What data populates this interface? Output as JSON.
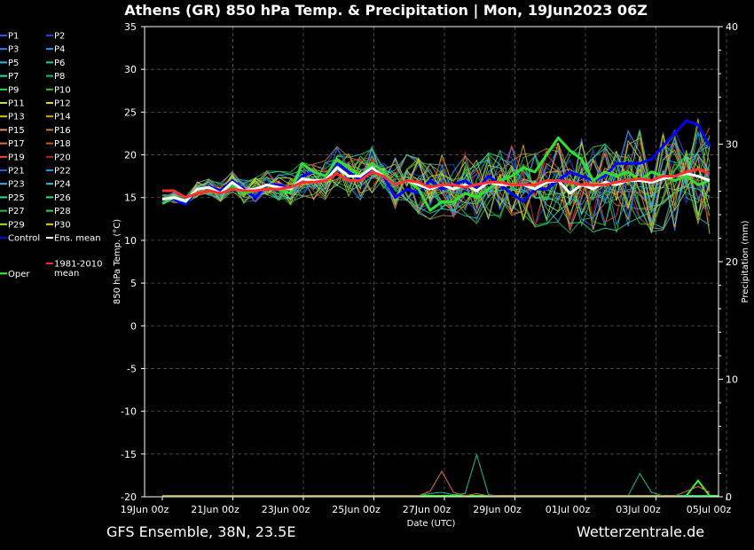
{
  "title": "Athens  (GR)  850 hPa Temp. & Precipitation | Mon, 19Jun2023 06Z",
  "footer_left": "GFS Ensemble, 38N, 23.5E",
  "footer_right": "Wetterzentrale.de",
  "chart_data": {
    "type": "line",
    "xlabel": "Date (UTC)",
    "ylabel": "850 hPa Temp. (°C)",
    "ylabel_right": "Precipitation (mm)",
    "ylim": [
      -20,
      35
    ],
    "ylim_right": [
      0,
      40
    ],
    "yticks": [
      "35",
      "30",
      "25",
      "20",
      "15",
      "10",
      "5",
      "0",
      "-5",
      "-10",
      "-15",
      "-20"
    ],
    "yticks_right": [
      "40",
      "30",
      "20",
      "10",
      "0"
    ],
    "xticks": [
      "19Jun 00z",
      "21Jun 00z",
      "23Jun 00z",
      "25Jun 00z",
      "27Jun 00z",
      "29Jun 00z",
      "01Jul 00z",
      "03Jul 00z",
      "05Jul 00z"
    ],
    "grid": true,
    "legend": [
      {
        "name": "P1",
        "color": "#3050ff"
      },
      {
        "name": "P2",
        "color": "#2040e0"
      },
      {
        "name": "P3",
        "color": "#3080ff"
      },
      {
        "name": "P4",
        "color": "#20a0ff"
      },
      {
        "name": "P5",
        "color": "#20c0e0"
      },
      {
        "name": "P6",
        "color": "#20d0a0"
      },
      {
        "name": "P7",
        "color": "#20e0c0"
      },
      {
        "name": "P8",
        "color": "#20c060"
      },
      {
        "name": "P9",
        "color": "#30e030"
      },
      {
        "name": "P10",
        "color": "#40c020"
      },
      {
        "name": "P11",
        "color": "#c0e030"
      },
      {
        "name": "P12",
        "color": "#e0d040"
      },
      {
        "name": "P13",
        "color": "#e0c020"
      },
      {
        "name": "P14",
        "color": "#e0a020"
      },
      {
        "name": "P15",
        "color": "#e09060"
      },
      {
        "name": "P16",
        "color": "#c08040"
      },
      {
        "name": "P17",
        "color": "#e07040"
      },
      {
        "name": "P18",
        "color": "#d05020"
      },
      {
        "name": "P19",
        "color": "#ff4040"
      },
      {
        "name": "P20",
        "color": "#c02020"
      },
      {
        "name": "P21",
        "color": "#2060e0"
      },
      {
        "name": "P22",
        "color": "#2090ff"
      },
      {
        "name": "P23",
        "color": "#40b0e0"
      },
      {
        "name": "P24",
        "color": "#40c0d0"
      },
      {
        "name": "P25",
        "color": "#20e0a0"
      },
      {
        "name": "P26",
        "color": "#30e080"
      },
      {
        "name": "P27",
        "color": "#20c040"
      },
      {
        "name": "P28",
        "color": "#40d040"
      },
      {
        "name": "P29",
        "color": "#a0e030"
      },
      {
        "name": "P30",
        "color": "#e0d020"
      },
      {
        "name": "Control",
        "color": "#0000ff"
      },
      {
        "name": "Ens. mean",
        "color": "#ffffff"
      },
      {
        "name": "Oper",
        "color": "#30ff30"
      },
      {
        "name": "1981-2010 mean",
        "color": "#ff3030"
      }
    ],
    "series": [
      {
        "name": "Control",
        "color": "#0000ff",
        "width": 3,
        "values": [
          14.5,
          14.8,
          14.2,
          16.0,
          16.3,
          15.8,
          17.0,
          16.0,
          15.0,
          16.5,
          16.5,
          16.0,
          17.5,
          18.0,
          17.5,
          19.0,
          18.0,
          17.0,
          18.5,
          17.5,
          15.0,
          16.0,
          15.5,
          17.0,
          16.0,
          16.5,
          17.0,
          16.0,
          17.5,
          16.5,
          15.5,
          14.5,
          16.0,
          16.0,
          17.0,
          18.0,
          17.5,
          17.0,
          17.5,
          19.0,
          19.0,
          19.0,
          19.5,
          21.0,
          22.5,
          24.0,
          23.5,
          21.0
        ]
      },
      {
        "name": "Oper",
        "color": "#30e030",
        "width": 3,
        "values": [
          14.3,
          15.0,
          14.5,
          16.0,
          16.2,
          15.5,
          16.5,
          15.5,
          15.8,
          16.5,
          16.0,
          15.5,
          19.0,
          18.0,
          17.5,
          19.5,
          18.5,
          17.5,
          19.0,
          18.0,
          16.5,
          17.0,
          16.0,
          13.5,
          14.5,
          14.5,
          15.5,
          15.0,
          16.0,
          17.0,
          17.5,
          18.5,
          18.0,
          20.0,
          22.0,
          20.5,
          19.5,
          17.0,
          18.0,
          17.5,
          18.0,
          17.0,
          18.0,
          17.5,
          17.0,
          17.5,
          16.5,
          17.0
        ]
      },
      {
        "name": "Ens. mean",
        "color": "#ffffff",
        "width": 3,
        "values": [
          14.8,
          15.0,
          14.6,
          16.0,
          16.2,
          15.5,
          16.8,
          15.8,
          16.0,
          16.5,
          16.2,
          16.0,
          17.2,
          17.0,
          17.0,
          18.5,
          17.5,
          17.5,
          18.5,
          17.5,
          16.5,
          17.0,
          16.5,
          16.0,
          16.5,
          16.0,
          16.5,
          15.8,
          16.8,
          16.5,
          16.5,
          16.5,
          16.0,
          16.8,
          17.0,
          15.5,
          16.5,
          16.0,
          16.8,
          16.5,
          17.0,
          17.0,
          16.8,
          17.2,
          17.5,
          17.8,
          17.5,
          17.0
        ]
      },
      {
        "name": "1981-2010 mean",
        "color": "#ff3030",
        "width": 3,
        "values": [
          15.8,
          15.8,
          15.0,
          15.5,
          15.8,
          15.5,
          16.0,
          15.8,
          15.8,
          16.0,
          16.0,
          16.2,
          16.8,
          16.8,
          17.0,
          17.8,
          17.0,
          17.0,
          18.0,
          17.5,
          16.5,
          17.0,
          16.8,
          16.2,
          16.5,
          16.5,
          16.2,
          16.5,
          16.8,
          16.8,
          16.5,
          16.5,
          16.5,
          17.0,
          17.0,
          16.8,
          16.5,
          16.5,
          16.5,
          16.8,
          17.0,
          17.2,
          17.0,
          17.5,
          17.5,
          18.0,
          18.3,
          17.8
        ]
      }
    ],
    "precip_series": [
      {
        "name": "Oper",
        "color": "#30ff30",
        "width": 2,
        "values": [
          0,
          0,
          0,
          0,
          0,
          0,
          0,
          0,
          0,
          0,
          0,
          0,
          0,
          0,
          0,
          0,
          0,
          0,
          0,
          0,
          0,
          0,
          0,
          0,
          0,
          0,
          0,
          0,
          0,
          0,
          0,
          0,
          0,
          0,
          0,
          0,
          0,
          0,
          0,
          0,
          0,
          0,
          0,
          0,
          0,
          0,
          1.3,
          0
        ]
      },
      {
        "name": "P25",
        "color": "#20c080",
        "width": 1,
        "values": [
          0,
          0,
          0,
          0,
          0,
          0,
          0,
          0,
          0,
          0,
          0,
          0,
          0,
          0,
          0,
          0,
          0,
          0,
          0,
          0,
          0,
          0,
          0,
          0.2,
          0.3,
          0.1,
          0.2,
          3.5,
          0.1,
          0,
          0,
          0,
          0,
          0,
          0,
          0,
          0,
          0,
          0,
          0,
          0,
          1.9,
          0.3,
          0,
          0,
          0,
          0,
          0
        ]
      },
      {
        "name": "P17",
        "color": "#e07040",
        "width": 1,
        "values": [
          0,
          0,
          0,
          0,
          0,
          0,
          0,
          0,
          0,
          0,
          0,
          0,
          0,
          0,
          0,
          0,
          0,
          0,
          0,
          0,
          0,
          0,
          0,
          0.4,
          2.1,
          0.3,
          0,
          0.2,
          0,
          0,
          0,
          0,
          0,
          0,
          0,
          0,
          0,
          0,
          0,
          0,
          0,
          0,
          0,
          0,
          0,
          0.4,
          0.8,
          0.3
        ]
      }
    ]
  }
}
